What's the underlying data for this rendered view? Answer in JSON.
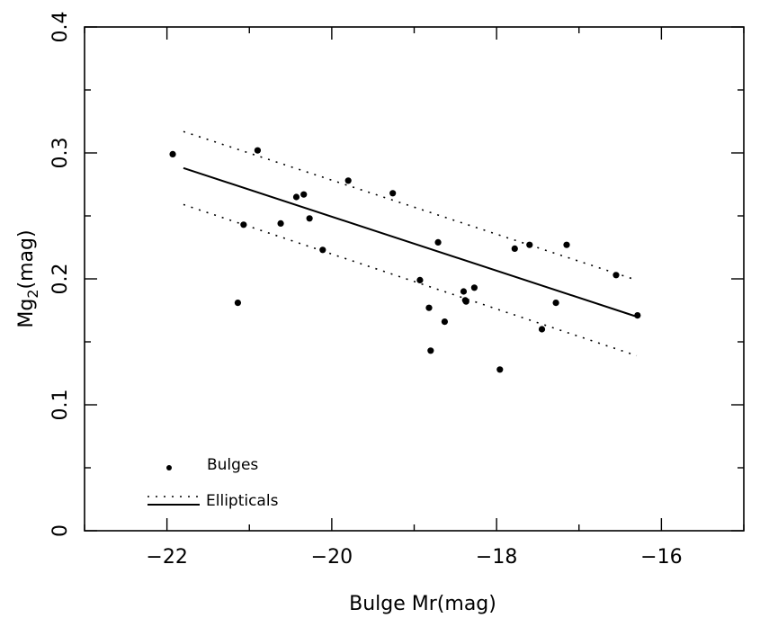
{
  "chart_data": {
    "type": "scatter",
    "xlabel": "Bulge Mr(mag)",
    "ylabel_main": "Mg",
    "ylabel_sub": "2",
    "ylabel_unit": "(mag)",
    "xlim": [
      -23.0,
      -15.0
    ],
    "ylim": [
      0.0,
      0.4
    ],
    "xticks": [
      -22,
      -20,
      -18,
      -16
    ],
    "xtick_labels": [
      "−22",
      "−20",
      "−18",
      "−16"
    ],
    "yticks": [
      0,
      0.1,
      0.2,
      0.3,
      0.4
    ],
    "ytick_labels": [
      "0",
      "0.1",
      "0.2",
      "0.3",
      "0.4"
    ],
    "grid": false,
    "legend_placement": "bottom-left",
    "series": [
      {
        "name": "Bulges",
        "kind": "points",
        "points": [
          [
            -21.93,
            0.299
          ],
          [
            -20.9,
            0.302
          ],
          [
            -21.07,
            0.243
          ],
          [
            -21.14,
            0.181
          ],
          [
            -20.62,
            0.244
          ],
          [
            -20.43,
            0.265
          ],
          [
            -20.34,
            0.267
          ],
          [
            -20.27,
            0.248
          ],
          [
            -20.11,
            0.223
          ],
          [
            -19.8,
            0.278
          ],
          [
            -19.26,
            0.268
          ],
          [
            -18.93,
            0.199
          ],
          [
            -18.82,
            0.177
          ],
          [
            -18.8,
            0.143
          ],
          [
            -18.71,
            0.229
          ],
          [
            -18.63,
            0.166
          ],
          [
            -18.4,
            0.19
          ],
          [
            -18.38,
            0.183
          ],
          [
            -18.37,
            0.182
          ],
          [
            -18.27,
            0.193
          ],
          [
            -17.96,
            0.128
          ],
          [
            -17.78,
            0.224
          ],
          [
            -17.6,
            0.227
          ],
          [
            -17.45,
            0.16
          ],
          [
            -17.28,
            0.181
          ],
          [
            -17.15,
            0.227
          ],
          [
            -16.55,
            0.203
          ],
          [
            -16.29,
            0.171
          ]
        ]
      },
      {
        "name": "Ellipticals",
        "kind": "fit",
        "x": [
          -21.8,
          -16.3
        ],
        "y": [
          0.288,
          0.17
        ],
        "upper_y": [
          0.317,
          0.199
        ],
        "lower_y": [
          0.259,
          0.139
        ]
      }
    ]
  }
}
